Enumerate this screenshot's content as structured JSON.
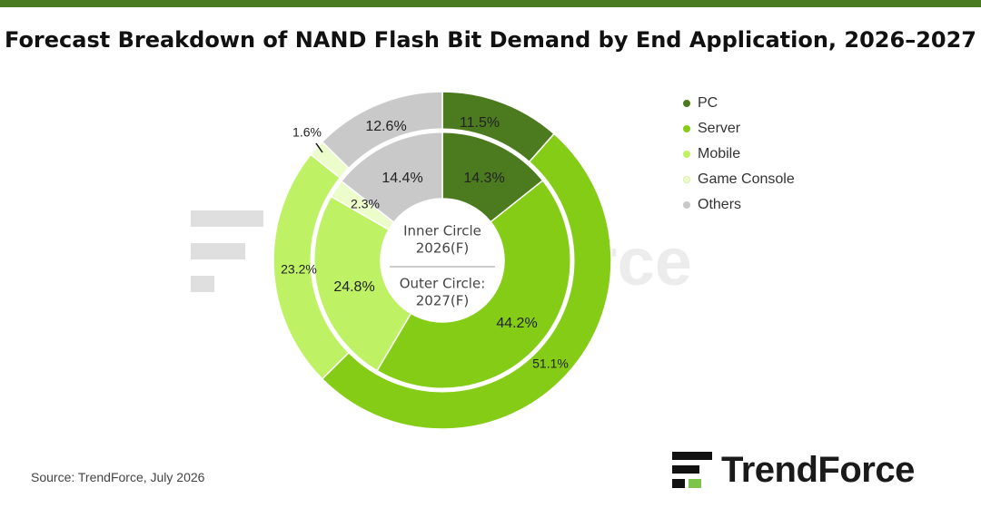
{
  "title": "Forecast Breakdown of NAND Flash Bit Demand by End Application, 2026–2027",
  "source": "Source: TrendForce, July 2026",
  "logo": {
    "text": "TrendForce"
  },
  "watermark": {
    "text": "ndForce"
  },
  "colors": {
    "top_bar": "#4a7a22",
    "PC": "#4c7a1f",
    "Server": "#84cc16",
    "Mobile": "#bef264",
    "Game Console": "#ecfccb",
    "Others": "#c9c9c9",
    "logo_mark": "#111111",
    "logo_mark_bar": "#7cc44a"
  },
  "chart_data": {
    "type": "pie",
    "style": "nested-donut",
    "categories": [
      "PC",
      "Server",
      "Mobile",
      "Game Console",
      "Others"
    ],
    "series": [
      {
        "name": "Inner Circle 2026(F)",
        "values": [
          14.3,
          44.2,
          24.8,
          2.3,
          14.4
        ],
        "labels": [
          "14.3%",
          "44.2%",
          "24.8%",
          "2.3%",
          "14.4%"
        ]
      },
      {
        "name": "Outer Circle: 2027(F)",
        "values": [
          11.5,
          51.1,
          23.2,
          1.6,
          12.6
        ],
        "labels": [
          "11.5%",
          "51.1%",
          "23.2%",
          "1.6%",
          "12.6%"
        ]
      }
    ],
    "center_text": {
      "inner": "Inner Circle 2026(F)",
      "inner_line1": "Inner Circle",
      "inner_line2": "2026(F)",
      "outer_line1": "Outer Circle:",
      "outer_line2": "2027(F)"
    },
    "legend_position": "right"
  }
}
